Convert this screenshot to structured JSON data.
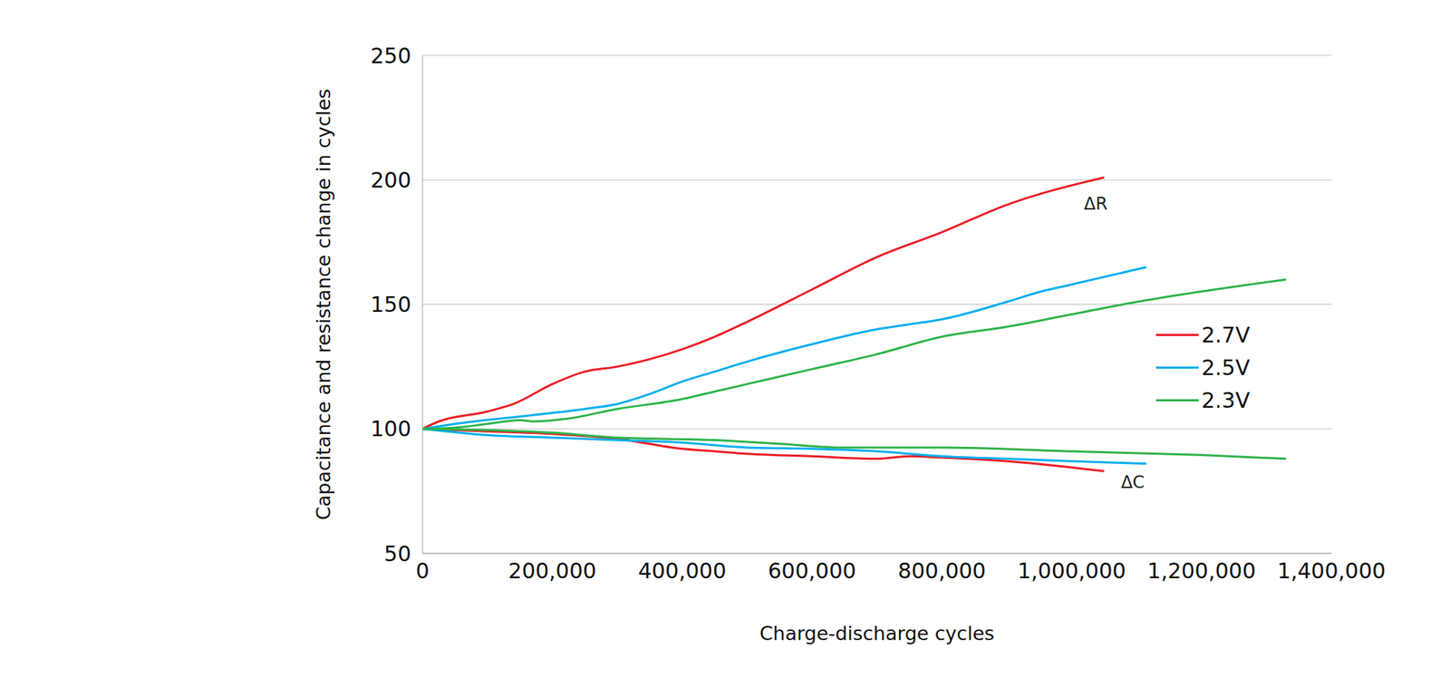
{
  "chart_data": {
    "type": "line",
    "y_label": "Capacitance and resistance change in cycles",
    "x_label": "Charge-discharge cycles",
    "xlim": [
      0,
      1400000
    ],
    "xticks": [
      0,
      {
        "value": 200000,
        "label": "200,000"
      },
      {
        "value": 400000,
        "label": "400,000"
      },
      {
        "value": 600000,
        "label": "600,000"
      },
      {
        "value": 800000,
        "label": "800,000"
      },
      {
        "value": 1000000,
        "label": "1,000,000"
      },
      {
        "value": 1200000,
        "label": "1,200,000"
      },
      {
        "value": 1400000,
        "label": "1,400,000"
      }
    ],
    "ylim": [
      50,
      250
    ],
    "yticks": [
      50,
      100,
      150,
      200,
      250
    ],
    "grid": true,
    "legend": "right",
    "series": [
      {
        "name": "2.7V",
        "color": "#ed1c24",
        "x": [
          0,
          25000,
          100000,
          140000,
          200000,
          250000,
          300000,
          350000,
          400000,
          450000,
          500000,
          600000,
          700000,
          800000,
          900000,
          1050000
        ],
        "values": [
          100,
          103,
          107,
          110,
          118,
          123,
          125,
          128,
          132,
          137,
          143,
          156,
          169,
          179,
          190,
          201
        ]
      },
      {
        "name": "2.7V",
        "color": "#ed1c24",
        "x": [
          0,
          100000,
          200000,
          300000,
          400000,
          450000,
          500000,
          600000,
          700000,
          750000,
          800000,
          900000,
          1050000
        ],
        "values": [
          100,
          99,
          98,
          96,
          92,
          91,
          90,
          89,
          88,
          89,
          88.5,
          87,
          83
        ]
      },
      {
        "name": "2.5V",
        "color": "#00aeef",
        "x": [
          0,
          50000,
          150000,
          250000,
          300000,
          350000,
          400000,
          450000,
          500000,
          600000,
          700000,
          750000,
          800000,
          900000,
          950000,
          1000000,
          1115000
        ],
        "values": [
          100,
          102,
          105,
          108,
          110,
          114,
          119,
          123,
          127,
          134,
          140,
          142,
          144,
          151,
          155,
          158,
          165
        ]
      },
      {
        "name": "2.5V",
        "color": "#00aeef",
        "x": [
          0,
          100000,
          200000,
          300000,
          400000,
          500000,
          600000,
          700000,
          800000,
          900000,
          1000000,
          1115000
        ],
        "values": [
          100,
          97.5,
          96.5,
          95.5,
          94.5,
          92.5,
          92,
          91,
          89,
          88,
          87,
          86
        ]
      },
      {
        "name": "2.3V",
        "color": "#2db34a",
        "x": [
          0,
          50000,
          100000,
          150000,
          170000,
          220000,
          300000,
          400000,
          450000,
          500000,
          600000,
          700000,
          800000,
          900000,
          1000000,
          1100000,
          1170000,
          1330000
        ],
        "values": [
          100,
          100.5,
          102,
          103.5,
          103,
          104,
          108,
          112,
          115,
          118,
          124,
          130,
          137,
          141,
          146,
          151,
          154,
          160
        ]
      },
      {
        "name": "2.3V",
        "color": "#2db34a",
        "x": [
          0,
          100000,
          200000,
          300000,
          450000,
          550000,
          650000,
          800000,
          1000000,
          1200000,
          1330000
        ],
        "values": [
          100,
          99.5,
          98.5,
          96.5,
          95.5,
          94,
          92.5,
          92.5,
          91,
          89.5,
          88
        ]
      }
    ],
    "annotations": [
      {
        "text": "ΔR",
        "x": 1037000,
        "y": 190.5
      },
      {
        "text": "ΔC",
        "x": 1094000,
        "y": 78.6
      }
    ]
  }
}
